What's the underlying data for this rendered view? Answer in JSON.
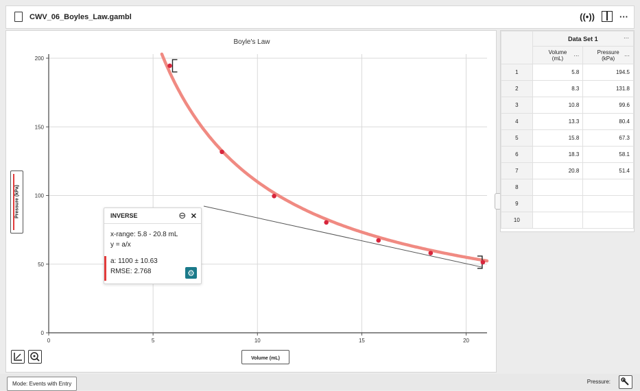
{
  "app": {
    "file_name": "CWV_06_Boyles_Law.gambl",
    "top_icons": {
      "live": "((•))",
      "more": "···"
    }
  },
  "graph": {
    "chart_data": {
      "type": "scatter",
      "title": "Boyle's Law",
      "xlabel": "Volume (mL)",
      "ylabel": "Pressure (kPa)",
      "xlim": [
        0,
        21
      ],
      "ylim": [
        0,
        203
      ],
      "x_ticks": [
        "0",
        "5",
        "10",
        "15",
        "20"
      ],
      "y_ticks": [
        "0",
        "50",
        "100",
        "150",
        "200"
      ],
      "series": [
        {
          "x": [
            5.8,
            8.3,
            10.8,
            13.3,
            15.8,
            18.3,
            20.8
          ],
          "y": [
            194.5,
            131.8,
            99.6,
            80.4,
            67.3,
            58.1,
            51.4
          ]
        }
      ],
      "fit": {
        "model": "y = a/x",
        "a": 1100,
        "x_range": [
          5.8,
          20.8
        ]
      },
      "grid": true,
      "colors": {
        "points": "#d7263d",
        "fit": "#f08a82",
        "grid": "#d9d9d9"
      }
    },
    "buttons": {
      "axes_icon": "axes-icon",
      "zoom_icon": "zoom-icon"
    }
  },
  "fit_popup": {
    "title": "INVERSE",
    "close": "✕",
    "x_range": "x-range: 5.8 - 20.8 mL",
    "equation": "y = a/x",
    "param_a": "a: 1100 ± 10.63",
    "rmse": "RMSE: 2.768",
    "accent": "#e23b3b",
    "gear_color": "#1b7a8a"
  },
  "table": {
    "data_set": "Data Set 1",
    "more": "···",
    "columns": [
      {
        "line1": "Volume",
        "line2": "(mL)"
      },
      {
        "line1": "Pressure",
        "line2": "(kPa)"
      }
    ],
    "rows": [
      {
        "n": "1",
        "v": "5.8",
        "p": "194.5"
      },
      {
        "n": "2",
        "v": "8.3",
        "p": "131.8"
      },
      {
        "n": "3",
        "v": "10.8",
        "p": "99.6"
      },
      {
        "n": "4",
        "v": "13.3",
        "p": "80.4"
      },
      {
        "n": "5",
        "v": "15.8",
        "p": "67.3"
      },
      {
        "n": "6",
        "v": "18.3",
        "p": "58.1"
      },
      {
        "n": "7",
        "v": "20.8",
        "p": "51.4"
      },
      {
        "n": "8",
        "v": "",
        "p": ""
      },
      {
        "n": "9",
        "v": "",
        "p": ""
      },
      {
        "n": "10",
        "v": "",
        "p": ""
      }
    ]
  },
  "footer": {
    "mode": "Mode: Events with Entry",
    "pressure": "Pressure:"
  }
}
